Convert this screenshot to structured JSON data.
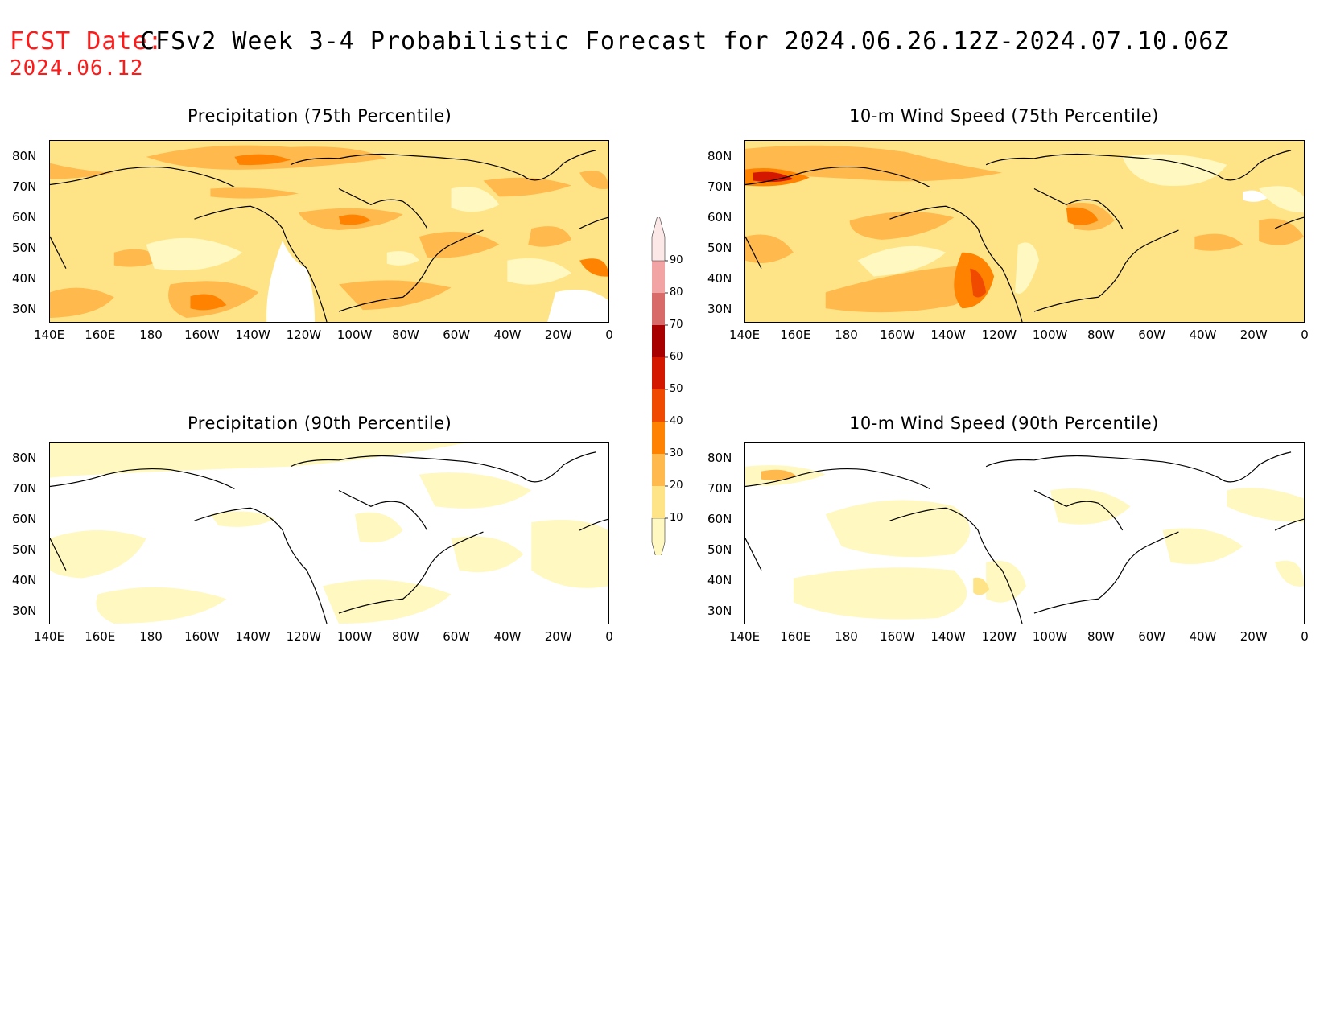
{
  "header": {
    "fcst_label": "FCST Date:",
    "fcst_date": "2024.06.12",
    "title": "CFSv2 Week 3-4 Probabilistic Forecast for 2024.06.26.12Z-2024.07.10.06Z"
  },
  "panels": [
    {
      "id": "precip75",
      "title": "Precipitation (75th Percentile)"
    },
    {
      "id": "wind75",
      "title": "10-m Wind Speed (75th Percentile)"
    },
    {
      "id": "precip90",
      "title": "Precipitation (90th Percentile)"
    },
    {
      "id": "wind90",
      "title": "10-m Wind Speed (90th Percentile)"
    }
  ],
  "lat_labels": [
    "80N",
    "70N",
    "60N",
    "50N",
    "40N",
    "30N"
  ],
  "lon_labels": [
    "140E",
    "160E",
    "180",
    "160W",
    "140W",
    "120W",
    "100W",
    "80W",
    "60W",
    "40W",
    "20W",
    "0"
  ],
  "colorbar": {
    "levels": [
      "10",
      "20",
      "30",
      "40",
      "50",
      "60",
      "70",
      "80",
      "90"
    ],
    "colors": [
      "#fff8c0",
      "#ffe487",
      "#ffb94d",
      "#ff8200",
      "#f04a00",
      "#d41800",
      "#a80000",
      "#d86a6a",
      "#f2a4a4",
      "#fde8e8"
    ]
  },
  "colors": {
    "fcst_label": "#ff1a1a",
    "coast": "#000000"
  }
}
